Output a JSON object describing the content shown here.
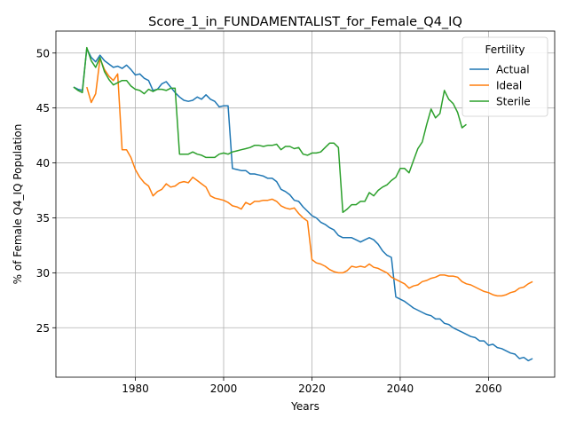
{
  "chart_data": {
    "type": "line",
    "title": "Score_1_in_FUNDAMENTALIST_for_Female_Q4_IQ",
    "xlabel": "Years",
    "ylabel": "% of Female Q4_IQ Population",
    "xlim": [
      1962,
      2075
    ],
    "ylim": [
      20.5,
      52
    ],
    "xticks": [
      1980,
      2000,
      2020,
      2040,
      2060
    ],
    "yticks": [
      25,
      30,
      35,
      40,
      45,
      50
    ],
    "grid": true,
    "legend": {
      "title": "Fertility",
      "position": "top-right"
    },
    "series": [
      {
        "name": "Actual",
        "color": "#1f77b4",
        "points": [
          [
            1966,
            46.9
          ],
          [
            1967,
            46.7
          ],
          [
            1968,
            46.6
          ],
          [
            1969,
            50.4
          ],
          [
            1970,
            49.6
          ],
          [
            1971,
            49.2
          ],
          [
            1972,
            49.8
          ],
          [
            1973,
            49.3
          ],
          [
            1974,
            49.0
          ],
          [
            1975,
            48.7
          ],
          [
            1976,
            48.8
          ],
          [
            1977,
            48.6
          ],
          [
            1978,
            48.9
          ],
          [
            1979,
            48.5
          ],
          [
            1980,
            48.0
          ],
          [
            1981,
            48.1
          ],
          [
            1982,
            47.7
          ],
          [
            1983,
            47.5
          ],
          [
            1984,
            46.6
          ],
          [
            1985,
            46.7
          ],
          [
            1986,
            47.2
          ],
          [
            1987,
            47.4
          ],
          [
            1988,
            46.9
          ],
          [
            1989,
            46.4
          ],
          [
            1990,
            46.0
          ],
          [
            1991,
            45.7
          ],
          [
            1992,
            45.6
          ],
          [
            1993,
            45.7
          ],
          [
            1994,
            46.0
          ],
          [
            1995,
            45.8
          ],
          [
            1996,
            46.2
          ],
          [
            1997,
            45.8
          ],
          [
            1998,
            45.6
          ],
          [
            1999,
            45.1
          ],
          [
            2000,
            45.2
          ],
          [
            2001,
            45.2
          ],
          [
            2002,
            39.5
          ],
          [
            2003,
            39.4
          ],
          [
            2004,
            39.3
          ],
          [
            2005,
            39.3
          ],
          [
            2006,
            39.0
          ],
          [
            2007,
            39.0
          ],
          [
            2008,
            38.9
          ],
          [
            2009,
            38.8
          ],
          [
            2010,
            38.6
          ],
          [
            2011,
            38.6
          ],
          [
            2012,
            38.3
          ],
          [
            2013,
            37.6
          ],
          [
            2014,
            37.4
          ],
          [
            2015,
            37.1
          ],
          [
            2016,
            36.6
          ],
          [
            2017,
            36.5
          ],
          [
            2018,
            36.0
          ],
          [
            2019,
            35.6
          ],
          [
            2020,
            35.2
          ],
          [
            2021,
            35.0
          ],
          [
            2022,
            34.6
          ],
          [
            2023,
            34.4
          ],
          [
            2024,
            34.1
          ],
          [
            2025,
            33.9
          ],
          [
            2026,
            33.4
          ],
          [
            2027,
            33.2
          ],
          [
            2028,
            33.2
          ],
          [
            2029,
            33.2
          ],
          [
            2030,
            33.0
          ],
          [
            2031,
            32.8
          ],
          [
            2032,
            33.0
          ],
          [
            2033,
            33.2
          ],
          [
            2034,
            33.0
          ],
          [
            2035,
            32.6
          ],
          [
            2036,
            32.0
          ],
          [
            2037,
            31.6
          ],
          [
            2038,
            31.4
          ],
          [
            2039,
            27.8
          ],
          [
            2040,
            27.6
          ],
          [
            2041,
            27.4
          ],
          [
            2042,
            27.1
          ],
          [
            2043,
            26.8
          ],
          [
            2044,
            26.6
          ],
          [
            2045,
            26.4
          ],
          [
            2046,
            26.2
          ],
          [
            2047,
            26.1
          ],
          [
            2048,
            25.8
          ],
          [
            2049,
            25.8
          ],
          [
            2050,
            25.4
          ],
          [
            2051,
            25.3
          ],
          [
            2052,
            25.0
          ],
          [
            2053,
            24.8
          ],
          [
            2054,
            24.6
          ],
          [
            2055,
            24.4
          ],
          [
            2056,
            24.2
          ],
          [
            2057,
            24.1
          ],
          [
            2058,
            23.8
          ],
          [
            2059,
            23.8
          ],
          [
            2060,
            23.4
          ],
          [
            2061,
            23.5
          ],
          [
            2062,
            23.2
          ],
          [
            2063,
            23.1
          ],
          [
            2064,
            22.9
          ],
          [
            2065,
            22.7
          ],
          [
            2066,
            22.6
          ],
          [
            2067,
            22.2
          ],
          [
            2068,
            22.3
          ],
          [
            2069,
            22.0
          ],
          [
            2070,
            22.2
          ]
        ]
      },
      {
        "name": "Ideal",
        "color": "#ff7f0e",
        "points": [
          [
            1969,
            46.9
          ],
          [
            1970,
            45.5
          ],
          [
            1971,
            46.3
          ],
          [
            1972,
            49.5
          ],
          [
            1973,
            48.5
          ],
          [
            1974,
            47.9
          ],
          [
            1975,
            47.5
          ],
          [
            1976,
            48.1
          ],
          [
            1977,
            41.2
          ],
          [
            1978,
            41.2
          ],
          [
            1979,
            40.5
          ],
          [
            1980,
            39.4
          ],
          [
            1981,
            38.7
          ],
          [
            1982,
            38.2
          ],
          [
            1983,
            37.9
          ],
          [
            1984,
            37.0
          ],
          [
            1985,
            37.4
          ],
          [
            1986,
            37.6
          ],
          [
            1987,
            38.1
          ],
          [
            1988,
            37.8
          ],
          [
            1989,
            37.9
          ],
          [
            1990,
            38.2
          ],
          [
            1991,
            38.3
          ],
          [
            1992,
            38.2
          ],
          [
            1993,
            38.7
          ],
          [
            1994,
            38.4
          ],
          [
            1995,
            38.1
          ],
          [
            1996,
            37.8
          ],
          [
            1997,
            37.0
          ],
          [
            1998,
            36.8
          ],
          [
            1999,
            36.7
          ],
          [
            2000,
            36.6
          ],
          [
            2001,
            36.4
          ],
          [
            2002,
            36.1
          ],
          [
            2003,
            36.0
          ],
          [
            2004,
            35.8
          ],
          [
            2005,
            36.4
          ],
          [
            2006,
            36.2
          ],
          [
            2007,
            36.5
          ],
          [
            2008,
            36.5
          ],
          [
            2009,
            36.6
          ],
          [
            2010,
            36.6
          ],
          [
            2011,
            36.7
          ],
          [
            2012,
            36.5
          ],
          [
            2013,
            36.1
          ],
          [
            2014,
            35.9
          ],
          [
            2015,
            35.8
          ],
          [
            2016,
            35.9
          ],
          [
            2017,
            35.4
          ],
          [
            2018,
            35.0
          ],
          [
            2019,
            34.7
          ],
          [
            2020,
            31.2
          ],
          [
            2021,
            30.9
          ],
          [
            2022,
            30.8
          ],
          [
            2023,
            30.6
          ],
          [
            2024,
            30.3
          ],
          [
            2025,
            30.1
          ],
          [
            2026,
            30.0
          ],
          [
            2027,
            30.0
          ],
          [
            2028,
            30.2
          ],
          [
            2029,
            30.6
          ],
          [
            2030,
            30.5
          ],
          [
            2031,
            30.6
          ],
          [
            2032,
            30.5
          ],
          [
            2033,
            30.8
          ],
          [
            2034,
            30.5
          ],
          [
            2035,
            30.4
          ],
          [
            2036,
            30.2
          ],
          [
            2037,
            30.0
          ],
          [
            2038,
            29.6
          ],
          [
            2039,
            29.4
          ],
          [
            2040,
            29.2
          ],
          [
            2041,
            29.0
          ],
          [
            2042,
            28.6
          ],
          [
            2043,
            28.8
          ],
          [
            2044,
            28.9
          ],
          [
            2045,
            29.2
          ],
          [
            2046,
            29.3
          ],
          [
            2047,
            29.5
          ],
          [
            2048,
            29.6
          ],
          [
            2049,
            29.8
          ],
          [
            2050,
            29.8
          ],
          [
            2051,
            29.7
          ],
          [
            2052,
            29.7
          ],
          [
            2053,
            29.6
          ],
          [
            2054,
            29.2
          ],
          [
            2055,
            29.0
          ],
          [
            2056,
            28.9
          ],
          [
            2057,
            28.7
          ],
          [
            2058,
            28.5
          ],
          [
            2059,
            28.3
          ],
          [
            2060,
            28.2
          ],
          [
            2061,
            28.0
          ],
          [
            2062,
            27.9
          ],
          [
            2063,
            27.9
          ],
          [
            2064,
            28.0
          ],
          [
            2065,
            28.2
          ],
          [
            2066,
            28.3
          ],
          [
            2067,
            28.6
          ],
          [
            2068,
            28.7
          ],
          [
            2069,
            29.0
          ],
          [
            2070,
            29.2
          ]
        ]
      },
      {
        "name": "Sterile",
        "color": "#2ca02c",
        "points": [
          [
            1966,
            46.9
          ],
          [
            1967,
            46.6
          ],
          [
            1968,
            46.4
          ],
          [
            1969,
            50.5
          ],
          [
            1970,
            49.3
          ],
          [
            1971,
            48.7
          ],
          [
            1972,
            49.6
          ],
          [
            1973,
            48.3
          ],
          [
            1974,
            47.6
          ],
          [
            1975,
            47.1
          ],
          [
            1976,
            47.3
          ],
          [
            1977,
            47.5
          ],
          [
            1978,
            47.5
          ],
          [
            1979,
            47.0
          ],
          [
            1980,
            46.7
          ],
          [
            1981,
            46.6
          ],
          [
            1982,
            46.3
          ],
          [
            1983,
            46.7
          ],
          [
            1984,
            46.5
          ],
          [
            1985,
            46.7
          ],
          [
            1986,
            46.7
          ],
          [
            1987,
            46.6
          ],
          [
            1988,
            46.8
          ],
          [
            1989,
            46.8
          ],
          [
            1990,
            40.8
          ],
          [
            1991,
            40.8
          ],
          [
            1992,
            40.8
          ],
          [
            1993,
            41.0
          ],
          [
            1994,
            40.8
          ],
          [
            1995,
            40.7
          ],
          [
            1996,
            40.5
          ],
          [
            1997,
            40.5
          ],
          [
            1998,
            40.5
          ],
          [
            1999,
            40.8
          ],
          [
            2000,
            40.9
          ],
          [
            2001,
            40.8
          ],
          [
            2002,
            41.0
          ],
          [
            2003,
            41.1
          ],
          [
            2004,
            41.2
          ],
          [
            2005,
            41.3
          ],
          [
            2006,
            41.4
          ],
          [
            2007,
            41.6
          ],
          [
            2008,
            41.6
          ],
          [
            2009,
            41.5
          ],
          [
            2010,
            41.6
          ],
          [
            2011,
            41.6
          ],
          [
            2012,
            41.7
          ],
          [
            2013,
            41.2
          ],
          [
            2014,
            41.5
          ],
          [
            2015,
            41.5
          ],
          [
            2016,
            41.3
          ],
          [
            2017,
            41.4
          ],
          [
            2018,
            40.8
          ],
          [
            2019,
            40.7
          ],
          [
            2020,
            40.9
          ],
          [
            2021,
            40.9
          ],
          [
            2022,
            41.0
          ],
          [
            2023,
            41.4
          ],
          [
            2024,
            41.8
          ],
          [
            2025,
            41.8
          ],
          [
            2026,
            41.4
          ],
          [
            2027,
            35.5
          ],
          [
            2028,
            35.8
          ],
          [
            2029,
            36.2
          ],
          [
            2030,
            36.2
          ],
          [
            2031,
            36.5
          ],
          [
            2032,
            36.5
          ],
          [
            2033,
            37.3
          ],
          [
            2034,
            37.0
          ],
          [
            2035,
            37.5
          ],
          [
            2036,
            37.8
          ],
          [
            2037,
            38.0
          ],
          [
            2038,
            38.4
          ],
          [
            2039,
            38.7
          ],
          [
            2040,
            39.5
          ],
          [
            2041,
            39.5
          ],
          [
            2042,
            39.1
          ],
          [
            2043,
            40.2
          ],
          [
            2044,
            41.3
          ],
          [
            2045,
            41.9
          ],
          [
            2046,
            43.5
          ],
          [
            2047,
            44.9
          ],
          [
            2048,
            44.1
          ],
          [
            2049,
            44.5
          ],
          [
            2050,
            46.6
          ],
          [
            2051,
            45.8
          ],
          [
            2052,
            45.4
          ],
          [
            2053,
            44.6
          ],
          [
            2054,
            43.2
          ],
          [
            2055,
            43.5
          ]
        ]
      }
    ]
  }
}
